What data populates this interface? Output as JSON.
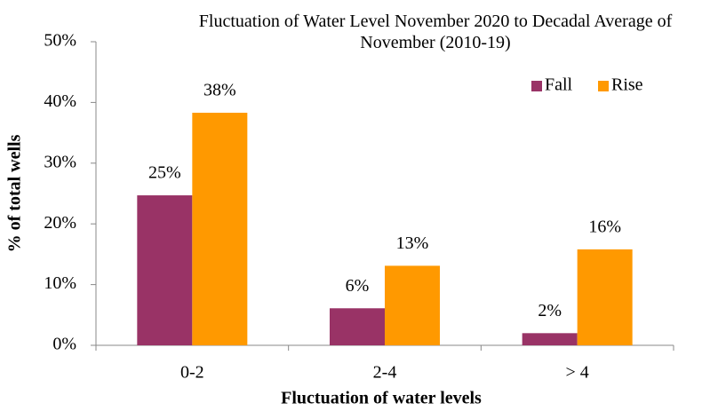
{
  "chart_data": {
    "type": "bar",
    "title": "Fluctuation of Water Level November 2020 to Decadal Average of November (2010-19)",
    "x_label": "Fluctuation of water levels",
    "y_label": "% of total wells",
    "categories": [
      "0-2",
      "2-4",
      "> 4"
    ],
    "series": [
      {
        "name": "Fall",
        "color": "#993366",
        "values": [
          24.7,
          6.1,
          2.0
        ],
        "value_labels": [
          "25%",
          "6%",
          "2%"
        ]
      },
      {
        "name": "Rise",
        "color": "#ff9900",
        "values": [
          38.3,
          13.1,
          15.8
        ],
        "value_labels": [
          "38%",
          "13%",
          "16%"
        ]
      }
    ],
    "ylim": [
      0,
      50
    ],
    "yticks": [
      {
        "value": 0,
        "label": "0%"
      },
      {
        "value": 10,
        "label": "10%"
      },
      {
        "value": 20,
        "label": "20%"
      },
      {
        "value": 30,
        "label": "30%"
      },
      {
        "value": 40,
        "label": "40%"
      },
      {
        "value": 50,
        "label": "50%"
      }
    ],
    "grid": false,
    "legend": "top-right"
  }
}
